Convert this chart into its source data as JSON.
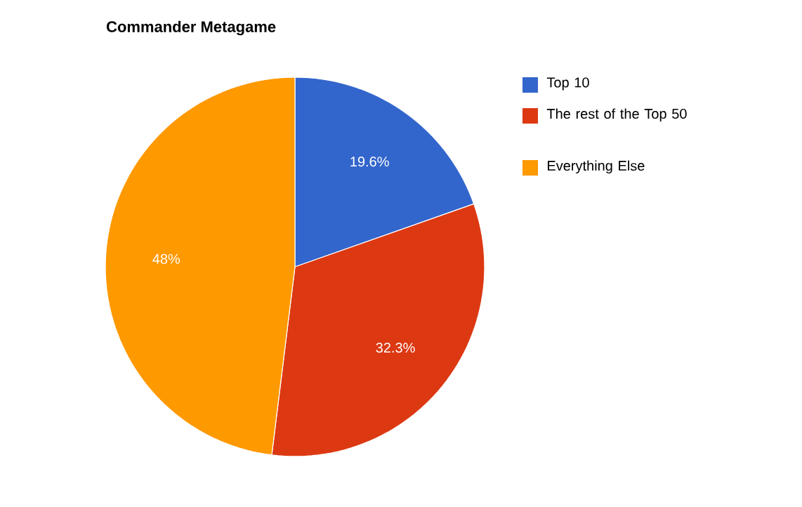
{
  "chart_data": {
    "type": "pie",
    "title": "Commander Metagame",
    "categories": [
      "Top 10",
      "The rest of the Top 50",
      "Everything Else"
    ],
    "values": [
      19.6,
      32.3,
      48
    ],
    "value_labels": [
      "19.6%",
      "32.3%",
      "48%"
    ],
    "colors": [
      "#3366cc",
      "#dc3912",
      "#ff9900"
    ],
    "legend": "top right"
  }
}
